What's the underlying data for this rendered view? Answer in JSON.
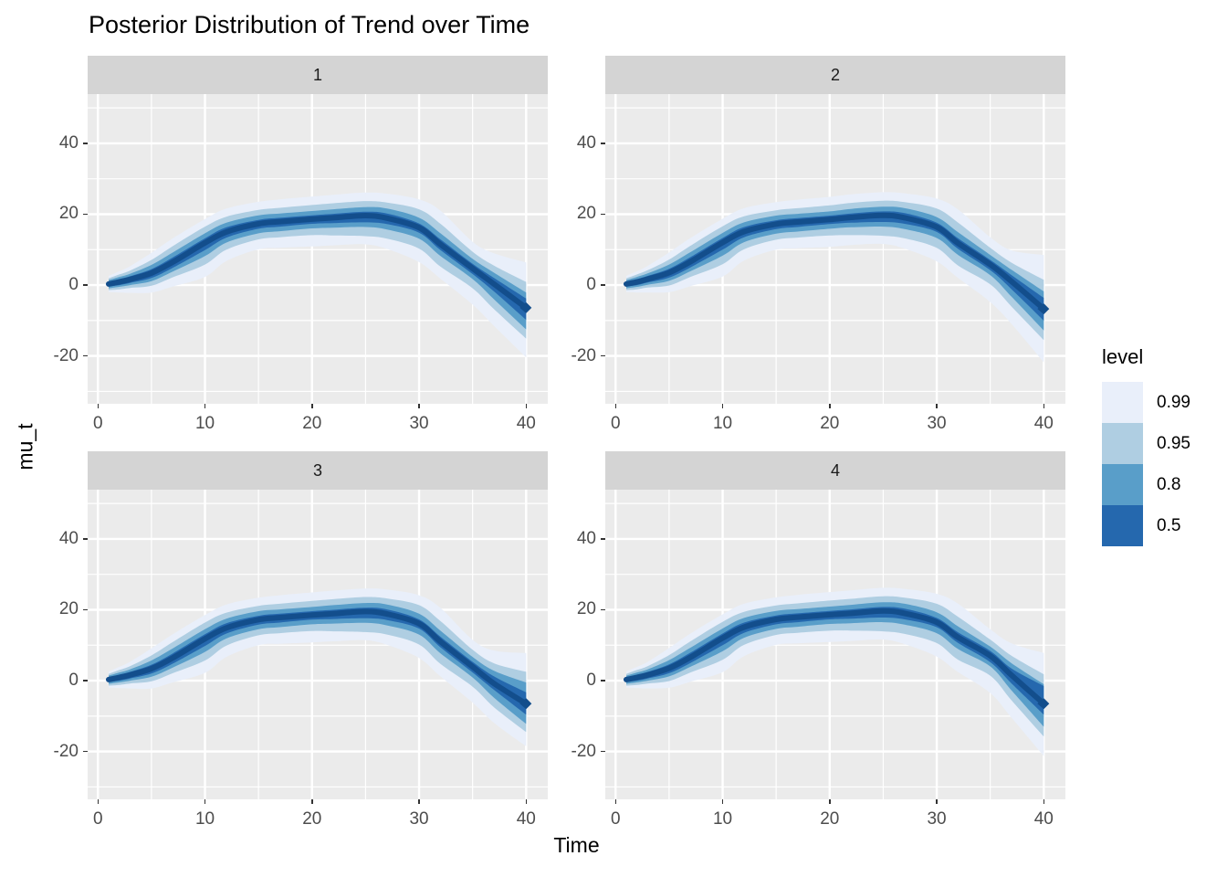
{
  "title": "Posterior Distribution of Trend over Time",
  "axes": {
    "x_label": "Time",
    "y_label": "mu_t",
    "x_tick_labels": [
      "0",
      "10",
      "20",
      "30",
      "40"
    ],
    "x_tick_values": [
      0,
      10,
      20,
      30,
      40
    ],
    "x_minor": [
      5,
      15,
      25,
      35
    ],
    "y_tick_labels": [
      "40",
      "20",
      "0",
      "-20"
    ],
    "y_tick_values": [
      40,
      20,
      0,
      -20
    ],
    "y_minor": [
      -30,
      -10,
      10,
      30,
      50
    ],
    "x_domain": [
      -0.96,
      42.02
    ],
    "y_domain": [
      -33.5,
      53.9
    ]
  },
  "legend": {
    "title": "level",
    "entries": [
      {
        "label": "0.99",
        "color": "#E9EFFA"
      },
      {
        "label": "0.95",
        "color": "#AFCEE2"
      },
      {
        "label": "0.8",
        "color": "#599EC9"
      },
      {
        "label": "0.5",
        "color": "#2568AE"
      }
    ]
  },
  "colors": {
    "panel_bg": "#EBEBEB",
    "strip_bg": "#D4D4D4",
    "grid": "#FFFFFF",
    "tick": "#333333",
    "tick_label": "#4D4D4D",
    "text": "#000000",
    "line": "#134E8C"
  },
  "chart_data": {
    "type": "area",
    "subtype": "fan-ribbon",
    "title": "Posterior Distribution of Trend over Time",
    "xlabel": "Time",
    "ylabel": "mu_t",
    "levels": [
      "0.99",
      "0.95",
      "0.8",
      "0.5"
    ],
    "xlim": [
      -0.96,
      42.02
    ],
    "ylim": [
      -33.5,
      53.9
    ],
    "grid": true,
    "legend_position": "right",
    "x": [
      1,
      2,
      3,
      5,
      7,
      10,
      12,
      15,
      17,
      20,
      22,
      25,
      27,
      30,
      32,
      35,
      37,
      40
    ],
    "facets": [
      {
        "label": "1",
        "median": [
          0.3,
          0.9,
          1.6,
          3.4,
          6.5,
          11.9,
          15.0,
          17.3,
          17.9,
          18.6,
          19.0,
          19.6,
          18.9,
          16.2,
          11.5,
          4.7,
          0.3,
          -6.4
        ],
        "bands": [
          {
            "level": "0.99",
            "lower": [
              -2.0,
              -2.1,
              -2.2,
              -2.1,
              -0.4,
              2.3,
              6.8,
              10.1,
              10.5,
              10.9,
              11.2,
              11.5,
              10.2,
              6.5,
              1.8,
              -5.5,
              -11.5,
              -20.4
            ],
            "upper": [
              2.6,
              3.9,
              5.3,
              9.1,
              13.2,
              18.6,
              21.6,
              23.5,
              24.2,
              25.0,
              25.5,
              26.1,
              25.8,
              24.2,
              21.0,
              12.2,
              9.0,
              6.4
            ]
          },
          {
            "level": "0.95",
            "lower": [
              -1.4,
              -1.2,
              -0.8,
              -0.2,
              2.2,
              5.8,
              10.0,
              12.9,
              13.5,
              14.1,
              14.0,
              13.8,
              13.1,
              10.3,
              5.2,
              -0.9,
              -6.8,
              -15.1
            ],
            "upper": [
              1.9,
              3.0,
              4.1,
              7.1,
              11.0,
              16.5,
              19.3,
              21.2,
              21.8,
              22.6,
              23.1,
              23.7,
              23.3,
              21.4,
              17.3,
              9.4,
              5.5,
              0.9
            ]
          },
          {
            "level": "0.8",
            "lower": [
              -0.9,
              -0.5,
              0.0,
              1.1,
              3.8,
              8.2,
              12.0,
              14.6,
              15.2,
              16.0,
              16.2,
              16.4,
              15.7,
              13.1,
              8.2,
              1.7,
              -4.0,
              -12.5
            ],
            "upper": [
              1.4,
              2.3,
              3.2,
              5.7,
              9.2,
              14.6,
              17.6,
              19.7,
              20.2,
              20.9,
              21.4,
              22.0,
              21.6,
              19.0,
              14.6,
              7.4,
              3.5,
              -2.1
            ]
          },
          {
            "level": "0.5",
            "lower": [
              -0.4,
              0.0,
              0.6,
              2.0,
              4.9,
              9.9,
              13.4,
              15.9,
              16.5,
              17.3,
              17.5,
              17.7,
              17.2,
              14.8,
              9.9,
              3.1,
              -1.8,
              -9.8
            ],
            "upper": [
              0.9,
              1.7,
              2.5,
              4.5,
              7.8,
              13.2,
              16.3,
              18.4,
              19.0,
              19.7,
              20.1,
              20.7,
              20.2,
              17.4,
              12.9,
              6.0,
              2.0,
              -3.8
            ]
          }
        ]
      },
      {
        "label": "2",
        "median": [
          0.3,
          0.9,
          1.7,
          3.5,
          6.6,
          12.0,
          15.1,
          17.2,
          17.8,
          18.5,
          19.1,
          19.7,
          19.0,
          16.4,
          11.8,
          5.8,
          1.0,
          -6.7
        ],
        "bands": [
          {
            "level": "0.99",
            "lower": [
              -2.0,
              -2.1,
              -2.1,
              -2.0,
              -0.3,
              2.4,
              6.9,
              10.0,
              10.4,
              10.8,
              11.3,
              11.6,
              10.3,
              6.7,
              2.0,
              -4.8,
              -11.0,
              -21.8
            ],
            "upper": [
              2.6,
              3.9,
              5.4,
              9.2,
              13.3,
              18.7,
              21.7,
              23.4,
              24.1,
              24.9,
              25.6,
              26.2,
              25.9,
              24.4,
              21.3,
              13.5,
              9.8,
              8.5
            ]
          },
          {
            "level": "0.95",
            "lower": [
              -1.4,
              -1.2,
              -0.7,
              -0.1,
              2.3,
              5.9,
              10.1,
              12.8,
              13.4,
              14.0,
              14.1,
              13.9,
              13.2,
              10.5,
              5.5,
              0.2,
              -6.1,
              -15.5
            ],
            "upper": [
              1.9,
              3.0,
              4.2,
              7.2,
              11.1,
              16.6,
              19.4,
              21.1,
              21.7,
              22.5,
              23.2,
              23.8,
              23.4,
              21.6,
              17.6,
              10.5,
              6.3,
              1.5
            ]
          },
          {
            "level": "0.8",
            "lower": [
              -0.9,
              -0.5,
              0.1,
              1.2,
              3.9,
              8.3,
              12.1,
              14.5,
              15.1,
              15.9,
              16.3,
              16.5,
              15.8,
              13.3,
              8.5,
              2.8,
              -3.3,
              -12.8
            ],
            "upper": [
              1.4,
              2.3,
              3.3,
              5.8,
              9.3,
              14.7,
              17.7,
              19.6,
              20.1,
              20.8,
              21.5,
              22.1,
              21.7,
              19.2,
              14.9,
              8.5,
              4.3,
              -1.8
            ]
          },
          {
            "level": "0.5",
            "lower": [
              -0.4,
              0.0,
              0.7,
              2.1,
              5.0,
              10.0,
              13.5,
              15.8,
              16.4,
              17.2,
              17.6,
              17.8,
              17.3,
              15.0,
              10.2,
              4.2,
              -1.2,
              -10.0
            ],
            "upper": [
              0.9,
              1.7,
              2.6,
              4.6,
              7.9,
              13.3,
              16.4,
              18.3,
              18.9,
              19.6,
              20.2,
              20.8,
              20.3,
              17.6,
              13.2,
              7.1,
              2.8,
              -3.6
            ]
          }
        ]
      },
      {
        "label": "3",
        "median": [
          0.3,
          0.9,
          1.6,
          3.4,
          6.4,
          11.8,
          14.9,
          17.2,
          17.8,
          18.5,
          18.9,
          19.5,
          18.8,
          16.1,
          11.0,
          3.9,
          -0.8,
          -6.5
        ],
        "bands": [
          {
            "level": "0.99",
            "lower": [
              -2.0,
              -2.1,
              -2.2,
              -2.2,
              -0.5,
              2.2,
              6.7,
              10.0,
              10.4,
              10.8,
              11.1,
              11.4,
              10.1,
              6.4,
              1.2,
              -6.2,
              -11.9,
              -18.5
            ],
            "upper": [
              2.6,
              3.9,
              5.3,
              9.1,
              13.1,
              18.5,
              21.5,
              23.4,
              24.1,
              24.9,
              25.4,
              26.0,
              25.7,
              24.1,
              20.5,
              11.5,
              8.5,
              7.8
            ]
          },
          {
            "level": "0.95",
            "lower": [
              -1.4,
              -1.2,
              -0.8,
              -0.2,
              2.1,
              5.7,
              9.9,
              12.8,
              13.4,
              14.0,
              13.9,
              13.7,
              13.0,
              10.2,
              4.7,
              -1.7,
              -7.5,
              -14.5
            ],
            "upper": [
              1.9,
              3.0,
              4.1,
              7.1,
              10.9,
              16.4,
              19.2,
              21.1,
              21.7,
              22.5,
              23.0,
              23.6,
              23.2,
              21.3,
              16.8,
              8.7,
              4.9,
              2.5
            ]
          },
          {
            "level": "0.8",
            "lower": [
              -0.9,
              -0.5,
              0.0,
              1.1,
              3.7,
              8.1,
              11.9,
              14.5,
              15.1,
              15.9,
              16.1,
              16.3,
              15.6,
              13.0,
              7.7,
              0.9,
              -4.8,
              -12.2
            ],
            "upper": [
              1.4,
              2.3,
              3.2,
              5.7,
              9.1,
              14.5,
              17.5,
              19.6,
              20.1,
              20.8,
              21.3,
              21.9,
              21.5,
              18.9,
              14.1,
              6.7,
              2.8,
              -0.5
            ]
          },
          {
            "level": "0.5",
            "lower": [
              -0.4,
              0.0,
              0.6,
              2.0,
              4.8,
              9.8,
              13.3,
              15.8,
              16.4,
              17.2,
              17.4,
              17.6,
              17.1,
              14.7,
              9.4,
              2.3,
              -2.6,
              -9.6
            ],
            "upper": [
              0.9,
              1.7,
              2.5,
              4.5,
              7.7,
              13.1,
              16.2,
              18.3,
              18.9,
              19.6,
              20.0,
              20.6,
              20.1,
              17.3,
              12.4,
              5.3,
              1.2,
              -3.3
            ]
          }
        ]
      },
      {
        "label": "4",
        "median": [
          0.3,
          0.9,
          1.6,
          3.5,
          6.6,
          12.0,
          15.1,
          17.3,
          17.9,
          18.6,
          19.0,
          19.7,
          19.0,
          16.5,
          12.2,
          7.0,
          1.5,
          -6.5
        ],
        "bands": [
          {
            "level": "0.99",
            "lower": [
              -2.0,
              -2.1,
              -2.2,
              -2.0,
              -0.3,
              2.4,
              6.9,
              10.1,
              10.5,
              10.9,
              11.2,
              11.6,
              10.3,
              6.8,
              2.4,
              -3.5,
              -10.5,
              -21.3
            ],
            "upper": [
              2.6,
              3.9,
              5.3,
              9.2,
              13.3,
              18.7,
              21.7,
              23.5,
              24.2,
              25.0,
              25.5,
              26.2,
              25.9,
              24.5,
              21.7,
              14.5,
              10.5,
              7.8
            ]
          },
          {
            "level": "0.95",
            "lower": [
              -1.4,
              -1.2,
              -0.8,
              -0.1,
              2.3,
              5.9,
              10.1,
              12.9,
              13.5,
              14.1,
              14.1,
              13.9,
              13.2,
              10.6,
              5.9,
              1.4,
              -5.6,
              -15.8
            ],
            "upper": [
              1.9,
              3.0,
              4.1,
              7.2,
              11.1,
              16.6,
              19.4,
              21.2,
              21.8,
              22.6,
              23.1,
              23.8,
              23.4,
              21.7,
              18.0,
              11.6,
              7.0,
              1.8
            ]
          },
          {
            "level": "0.8",
            "lower": [
              -0.9,
              -0.5,
              0.0,
              1.2,
              3.9,
              8.3,
              12.1,
              14.6,
              15.2,
              16.0,
              16.2,
              16.5,
              15.8,
              13.4,
              8.9,
              4.0,
              -2.8,
              -13.0
            ],
            "upper": [
              1.4,
              2.3,
              3.2,
              5.8,
              9.3,
              14.7,
              17.7,
              19.7,
              20.2,
              20.9,
              21.4,
              22.1,
              21.7,
              19.3,
              15.3,
              9.6,
              4.9,
              -1.0
            ]
          },
          {
            "level": "0.5",
            "lower": [
              -0.4,
              0.0,
              0.6,
              2.1,
              5.0,
              10.0,
              13.5,
              15.9,
              16.5,
              17.3,
              17.5,
              17.8,
              17.3,
              15.1,
              10.6,
              5.2,
              -0.8,
              -9.6
            ],
            "upper": [
              0.9,
              1.7,
              2.5,
              4.6,
              7.9,
              13.3,
              16.4,
              18.4,
              19.0,
              19.7,
              20.1,
              20.8,
              20.3,
              17.7,
              13.6,
              8.4,
              3.4,
              -1.5
            ]
          }
        ]
      }
    ]
  }
}
